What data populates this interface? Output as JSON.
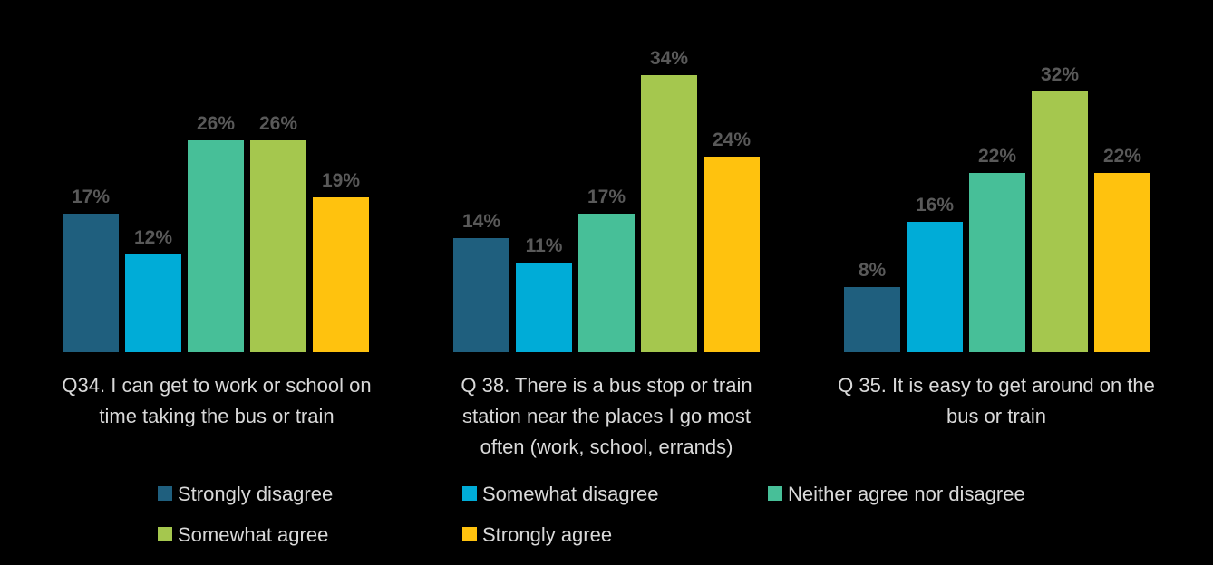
{
  "chart_data": {
    "type": "bar",
    "title": "",
    "xlabel": "",
    "ylabel": "",
    "ylim": [
      0,
      34
    ],
    "grid": false,
    "legend_position": "bottom",
    "categories": [
      "Q34. I can get to work or school on time taking the bus or train",
      "Q 38. There is a bus stop or train station near the places I go most often (work, school, errands)",
      "Q 35. It is easy to get around on the bus or train"
    ],
    "category_lines": [
      [
        "Q34. I can get to work or school on",
        "time taking the bus or train"
      ],
      [
        "Q 38. There is a bus stop or train",
        "station near the places I go most",
        "often (work, school, errands)"
      ],
      [
        "Q 35. It is easy to get around on the",
        "bus or train"
      ]
    ],
    "series": [
      {
        "name": "Strongly disagree",
        "color": "#1f5f7e",
        "values": [
          17,
          14,
          8
        ],
        "labels": [
          "17%",
          "14%",
          "8%"
        ]
      },
      {
        "name": "Somewhat disagree",
        "color": "#00acd7",
        "values": [
          12,
          11,
          16
        ],
        "labels": [
          "12%",
          "11%",
          "16%"
        ]
      },
      {
        "name": "Neither agree nor disagree",
        "color": "#47bf98",
        "values": [
          26,
          17,
          22
        ],
        "labels": [
          "26%",
          "17%",
          "22%"
        ]
      },
      {
        "name": "Somewhat agree",
        "color": "#a5c74e",
        "values": [
          26,
          34,
          32
        ],
        "labels": [
          "26%",
          "34%",
          "32%"
        ]
      },
      {
        "name": "Strongly agree",
        "color": "#ffc20e",
        "values": [
          19,
          24,
          22
        ],
        "labels": [
          "19%",
          "24%",
          "22%"
        ]
      }
    ]
  }
}
